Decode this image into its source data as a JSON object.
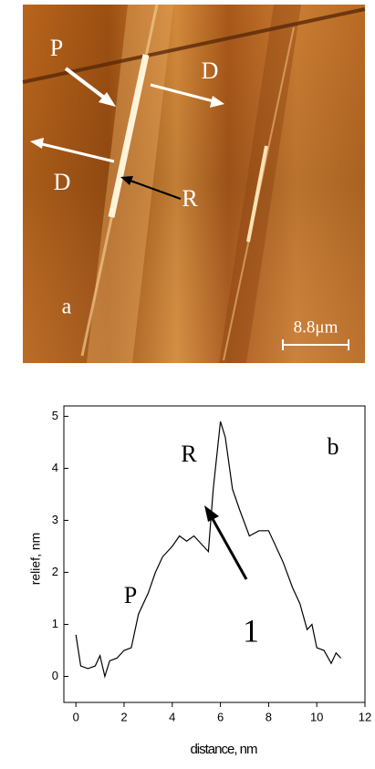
{
  "image": {
    "labels": [
      "P",
      "D",
      "D",
      "R",
      "a",
      "8.8μm"
    ]
  },
  "chart_data": {
    "type": "line",
    "x": [
      0,
      0.2,
      0.5,
      0.8,
      1.0,
      1.2,
      1.4,
      1.7,
      2.0,
      2.3,
      2.6,
      3.0,
      3.3,
      3.6,
      4.0,
      4.3,
      4.6,
      4.9,
      5.2,
      5.5,
      5.7,
      6.0,
      6.2,
      6.5,
      6.8,
      7.2,
      7.6,
      8.0,
      8.3,
      8.6,
      9.0,
      9.3,
      9.6,
      9.8,
      10.0,
      10.3,
      10.6,
      10.8,
      11.0
    ],
    "values": [
      0.8,
      0.2,
      0.15,
      0.2,
      0.4,
      0,
      0.3,
      0.35,
      0.5,
      0.55,
      1.2,
      1.6,
      2.0,
      2.3,
      2.5,
      2.7,
      2.6,
      2.7,
      2.55,
      2.4,
      3.6,
      4.9,
      4.6,
      3.6,
      3.2,
      2.7,
      2.8,
      2.8,
      2.5,
      2.2,
      1.7,
      1.4,
      0.9,
      1.0,
      0.55,
      0.5,
      0.25,
      0.45,
      0.35
    ],
    "color": "#000000",
    "xlabel": "distance, nm",
    "ylabel": "relief, nm",
    "xlim": [
      -0.5,
      12
    ],
    "xticks": [
      0,
      2,
      4,
      6,
      8,
      10,
      12
    ],
    "ylim": [
      -0.5,
      5.2
    ],
    "yticks": [
      0,
      1,
      2,
      3,
      4,
      5
    ],
    "annotations": [
      "R",
      "b",
      "P",
      "1"
    ]
  }
}
